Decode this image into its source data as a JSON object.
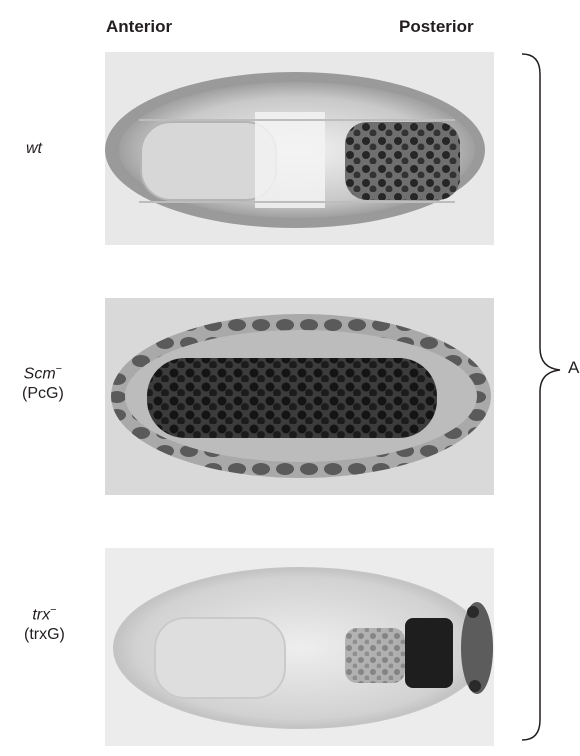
{
  "figure": {
    "column_headers": {
      "left": "Anterior",
      "right": "Posterior"
    },
    "rows": [
      {
        "genotype": "wt",
        "superscript": "",
        "group": ""
      },
      {
        "genotype": "Scm",
        "superscript": "−",
        "group": "(PcG)"
      },
      {
        "genotype": "trx",
        "superscript": "−",
        "group": "(trxG)"
      }
    ],
    "brace_label": "A"
  }
}
